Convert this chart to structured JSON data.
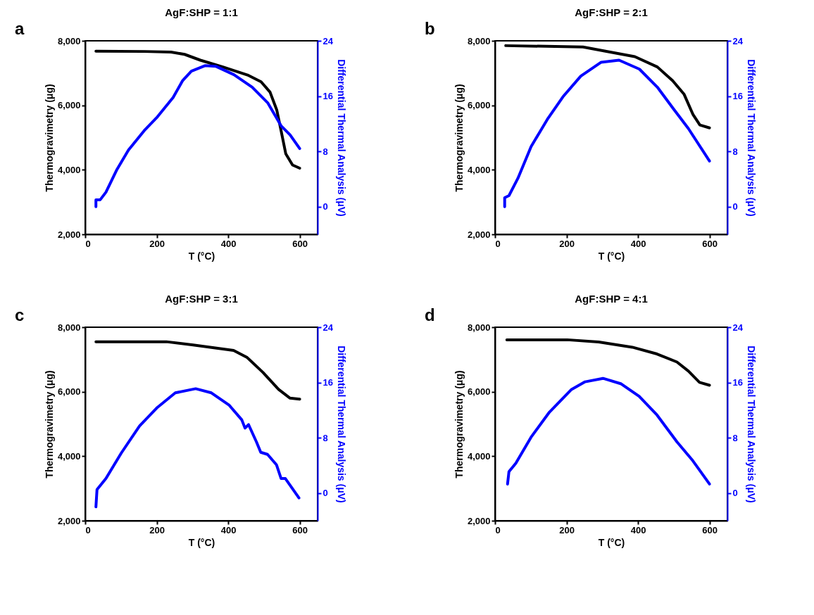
{
  "chart_data": [
    {
      "type": "line",
      "title": "AgF:SHP = 1:1",
      "xlabel": "T (°C)",
      "ylabel": "Thermogravimetry (μg)",
      "y2label": "Differential Thermal Analysis (μV)",
      "annotations": [
        "a"
      ],
      "xlim": [
        0,
        650
      ],
      "xticks": [
        0,
        200,
        400,
        600
      ],
      "ylim": [
        2000,
        8000
      ],
      "yticks": [
        {
          "value": 2000,
          "label": "2,000"
        },
        {
          "value": 4000,
          "label": "4,000"
        },
        {
          "value": 6000,
          "label": "6,000"
        },
        {
          "value": 8000,
          "label": "8,000"
        }
      ],
      "y2lim": [
        -4,
        24
      ],
      "y2ticks": [
        0,
        8,
        16,
        24
      ],
      "grid": false,
      "series": [
        {
          "color": "#000000",
          "x": [
            30,
            165,
            240,
            278,
            322,
            385,
            454,
            492,
            517,
            536,
            548,
            561,
            580,
            600
          ],
          "values": [
            7680,
            7670,
            7650,
            7580,
            7400,
            7190,
            6940,
            6730,
            6410,
            5850,
            5210,
            4500,
            4150,
            4050
          ]
        },
        {
          "color": "#0000ff",
          "axis": "y2",
          "x": [
            30,
            30,
            42,
            58,
            89,
            121,
            165,
            202,
            246,
            272,
            297,
            335,
            366,
            416,
            467,
            511,
            548,
            573,
            600
          ],
          "values": [
            0,
            1.0,
            1.0,
            2.1,
            5.4,
            8.2,
            11.0,
            13.0,
            15.8,
            18.2,
            19.6,
            20.4,
            20.3,
            19.1,
            17.3,
            15.0,
            11.7,
            10.4,
            8.4
          ]
        }
      ]
    },
    {
      "type": "line",
      "title": "AgF:SHP = 2:1",
      "xlabel": "T (°C)",
      "ylabel": "Thermogravimetry (μg)",
      "y2label": "Differential Thermal Analysis (μV)",
      "annotations": [
        "b"
      ],
      "xlim": [
        0,
        650
      ],
      "xticks": [
        0,
        200,
        400,
        600
      ],
      "ylim": [
        2000,
        8000
      ],
      "yticks": [
        {
          "value": 2000,
          "label": "2,000"
        },
        {
          "value": 4000,
          "label": "4,000"
        },
        {
          "value": 6000,
          "label": "6,000"
        },
        {
          "value": 8000,
          "label": "8,000"
        }
      ],
      "y2lim": [
        -4,
        24
      ],
      "y2ticks": [
        0,
        8,
        16,
        24
      ],
      "grid": false,
      "series": [
        {
          "color": "#000000",
          "x": [
            30,
            246,
            309,
            391,
            454,
            497,
            529,
            554,
            573,
            600
          ],
          "values": [
            7850,
            7810,
            7680,
            7510,
            7190,
            6760,
            6340,
            5710,
            5390,
            5300
          ]
        },
        {
          "color": "#0000ff",
          "axis": "y2",
          "x": [
            27,
            27,
            39,
            64,
            101,
            146,
            190,
            240,
            297,
            347,
            404,
            454,
            497,
            541,
            600
          ],
          "values": [
            0,
            1.3,
            1.6,
            4.1,
            8.7,
            12.6,
            15.9,
            18.9,
            20.9,
            21.2,
            19.9,
            17.3,
            14.3,
            11.3,
            6.6
          ]
        }
      ]
    },
    {
      "type": "line",
      "title": "AgF:SHP = 3:1",
      "xlabel": "T (°C)",
      "ylabel": "Thermogravimetry (μg)",
      "y2label": "Differential Thermal Analysis (μV)",
      "annotations": [
        "c"
      ],
      "xlim": [
        0,
        650
      ],
      "xticks": [
        0,
        200,
        400,
        600
      ],
      "ylim": [
        2000,
        8000
      ],
      "yticks": [
        {
          "value": 2000,
          "label": "2,000"
        },
        {
          "value": 4000,
          "label": "4,000"
        },
        {
          "value": 6000,
          "label": "6,000"
        },
        {
          "value": 8000,
          "label": "8,000"
        }
      ],
      "y2lim": [
        -4,
        24
      ],
      "y2ticks": [
        0,
        8,
        16,
        24
      ],
      "grid": false,
      "series": [
        {
          "color": "#000000",
          "x": [
            30,
            227,
            302,
            415,
            453,
            497,
            541,
            573,
            600
          ],
          "values": [
            7550,
            7550,
            7450,
            7280,
            7060,
            6600,
            6070,
            5800,
            5770
          ]
        },
        {
          "color": "#0000ff",
          "axis": "y2",
          "x": [
            30,
            33,
            58,
            101,
            152,
            202,
            252,
            309,
            353,
            403,
            438,
            447,
            457,
            479,
            491,
            510,
            535,
            548,
            560,
            598
          ],
          "values": [
            -2.0,
            0.5,
            2.1,
            5.8,
            9.7,
            12.4,
            14.5,
            15.1,
            14.5,
            12.7,
            10.6,
            9.4,
            9.9,
            7.4,
            5.9,
            5.6,
            4.1,
            2.1,
            2.1,
            -0.7
          ]
        }
      ]
    },
    {
      "type": "line",
      "title": "AgF:SHP = 4:1",
      "xlabel": "T (°C)",
      "ylabel": "Thermogravimetry (μg)",
      "y2label": "Differential Thermal Analysis (μV)",
      "annotations": [
        "d"
      ],
      "xlim": [
        0,
        650
      ],
      "xticks": [
        0,
        200,
        400,
        600
      ],
      "ylim": [
        2000,
        8000
      ],
      "yticks": [
        {
          "value": 2000,
          "label": "2,000"
        },
        {
          "value": 4000,
          "label": "4,000"
        },
        {
          "value": 6000,
          "label": "6,000"
        },
        {
          "value": 8000,
          "label": "8,000"
        }
      ],
      "y2lim": [
        -4,
        24
      ],
      "y2ticks": [
        0,
        8,
        16,
        24
      ],
      "grid": false,
      "series": [
        {
          "color": "#000000",
          "x": [
            33,
            202,
            290,
            384,
            453,
            509,
            541,
            572,
            600
          ],
          "values": [
            7610,
            7610,
            7540,
            7380,
            7170,
            6920,
            6640,
            6290,
            6200
          ]
        },
        {
          "color": "#0000ff",
          "axis": "y2",
          "x": [
            35,
            39,
            58,
            101,
            152,
            214,
            252,
            302,
            353,
            403,
            453,
            509,
            553,
            600
          ],
          "values": [
            1.3,
            3.1,
            4.3,
            8.1,
            11.7,
            15.0,
            16.1,
            16.6,
            15.8,
            14.0,
            11.3,
            7.4,
            4.7,
            1.3
          ]
        }
      ]
    }
  ]
}
